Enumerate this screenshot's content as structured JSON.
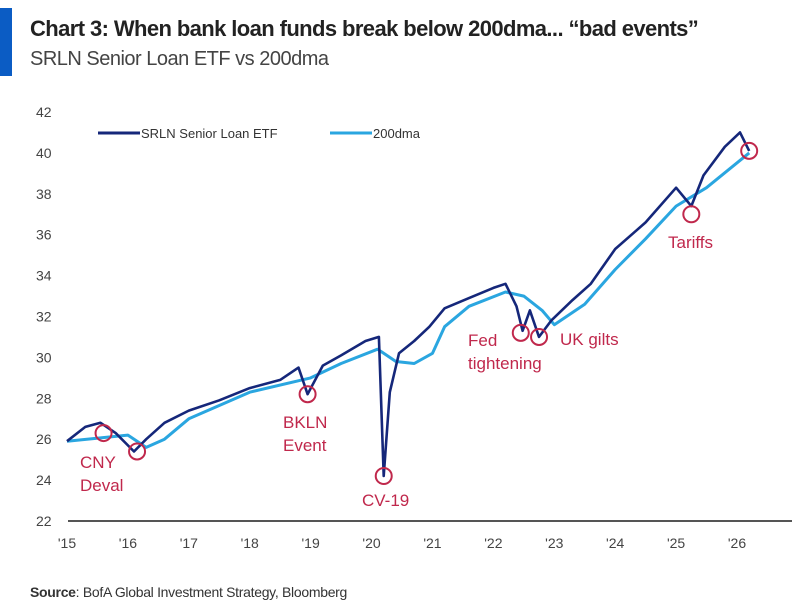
{
  "chart_data": {
    "type": "line",
    "title": "Chart 3: When bank loan funds break below 200dma... “bad events”",
    "subtitle": "SRLN Senior Loan ETF vs 200dma",
    "source_label": "Source",
    "source_text": ": BofA Global Investment Strategy, Bloomberg",
    "xlabel": "",
    "ylabel": "",
    "xlim": [
      2015,
      2026.9
    ],
    "ylim": [
      22,
      42
    ],
    "yticks": [
      22,
      24,
      26,
      28,
      30,
      32,
      34,
      36,
      38,
      40,
      42
    ],
    "xticks": [
      {
        "value": 2015,
        "label": "'15"
      },
      {
        "value": 2016,
        "label": "'16"
      },
      {
        "value": 2017,
        "label": "'17"
      },
      {
        "value": 2018,
        "label": "'18"
      },
      {
        "value": 2019,
        "label": "'19"
      },
      {
        "value": 2020,
        "label": "'20"
      },
      {
        "value": 2021,
        "label": "'21"
      },
      {
        "value": 2022,
        "label": "'22"
      },
      {
        "value": 2023,
        "label": "'23"
      },
      {
        "value": 2024,
        "label": "'24"
      },
      {
        "value": 2025,
        "label": "'25"
      },
      {
        "value": 2026,
        "label": "'26"
      }
    ],
    "grid": false,
    "legend_position": "top-left",
    "series": [
      {
        "name": "SRLN Senior Loan ETF",
        "color": "#15277a",
        "x": [
          2015.0,
          2015.3,
          2015.55,
          2015.8,
          2016.1,
          2016.3,
          2016.6,
          2017.0,
          2017.5,
          2018.0,
          2018.5,
          2018.8,
          2018.95,
          2019.2,
          2019.5,
          2019.9,
          2020.12,
          2020.2,
          2020.3,
          2020.45,
          2020.7,
          2020.95,
          2021.2,
          2021.6,
          2022.0,
          2022.2,
          2022.38,
          2022.48,
          2022.6,
          2022.75,
          2022.95,
          2023.3,
          2023.6,
          2024.0,
          2024.5,
          2025.0,
          2025.25,
          2025.45,
          2025.8,
          2026.05,
          2026.2
        ],
        "values": [
          25.9,
          26.6,
          26.8,
          26.3,
          25.4,
          26.0,
          26.8,
          27.4,
          27.9,
          28.5,
          28.9,
          29.5,
          28.2,
          29.6,
          30.1,
          30.8,
          31.0,
          24.2,
          28.3,
          30.2,
          30.8,
          31.5,
          32.4,
          32.9,
          33.4,
          33.6,
          32.5,
          31.3,
          32.3,
          31.0,
          31.8,
          32.8,
          33.6,
          35.3,
          36.6,
          38.3,
          37.4,
          38.9,
          40.3,
          41.0,
          40.1
        ]
      },
      {
        "name": "200dma",
        "color": "#2aa6e0",
        "x": [
          2015.0,
          2016.0,
          2016.3,
          2016.6,
          2017.0,
          2018.0,
          2019.0,
          2019.5,
          2020.1,
          2020.4,
          2020.7,
          2021.0,
          2021.2,
          2021.6,
          2022.2,
          2022.5,
          2022.8,
          2023.0,
          2023.5,
          2024.0,
          2024.5,
          2025.0,
          2025.5,
          2026.2
        ],
        "values": [
          25.9,
          26.2,
          25.6,
          26.0,
          27.0,
          28.3,
          29.0,
          29.7,
          30.4,
          29.8,
          29.7,
          30.2,
          31.5,
          32.5,
          33.2,
          33.0,
          32.3,
          31.6,
          32.6,
          34.3,
          35.8,
          37.4,
          38.3,
          40.0
        ]
      }
    ],
    "annotations": [
      {
        "label": [
          "CNY",
          "Deval"
        ],
        "x": 2015.6,
        "y": 26.3
      },
      {
        "label": [],
        "x": 2016.15,
        "y": 25.4
      },
      {
        "label": [
          "BKLN",
          "Event"
        ],
        "x": 2018.95,
        "y": 28.2
      },
      {
        "label": [
          "CV-19"
        ],
        "x": 2020.2,
        "y": 24.2
      },
      {
        "label": [
          "Fed",
          "tightening"
        ],
        "x": 2022.45,
        "y": 31.2
      },
      {
        "label": [
          "UK gilts"
        ],
        "x": 2022.75,
        "y": 31.0
      },
      {
        "label": [
          "Tariffs"
        ],
        "x": 2025.25,
        "y": 37.0
      },
      {
        "label": [],
        "x": 2026.2,
        "y": 40.1
      }
    ],
    "annotation_color": "#c0284c"
  }
}
